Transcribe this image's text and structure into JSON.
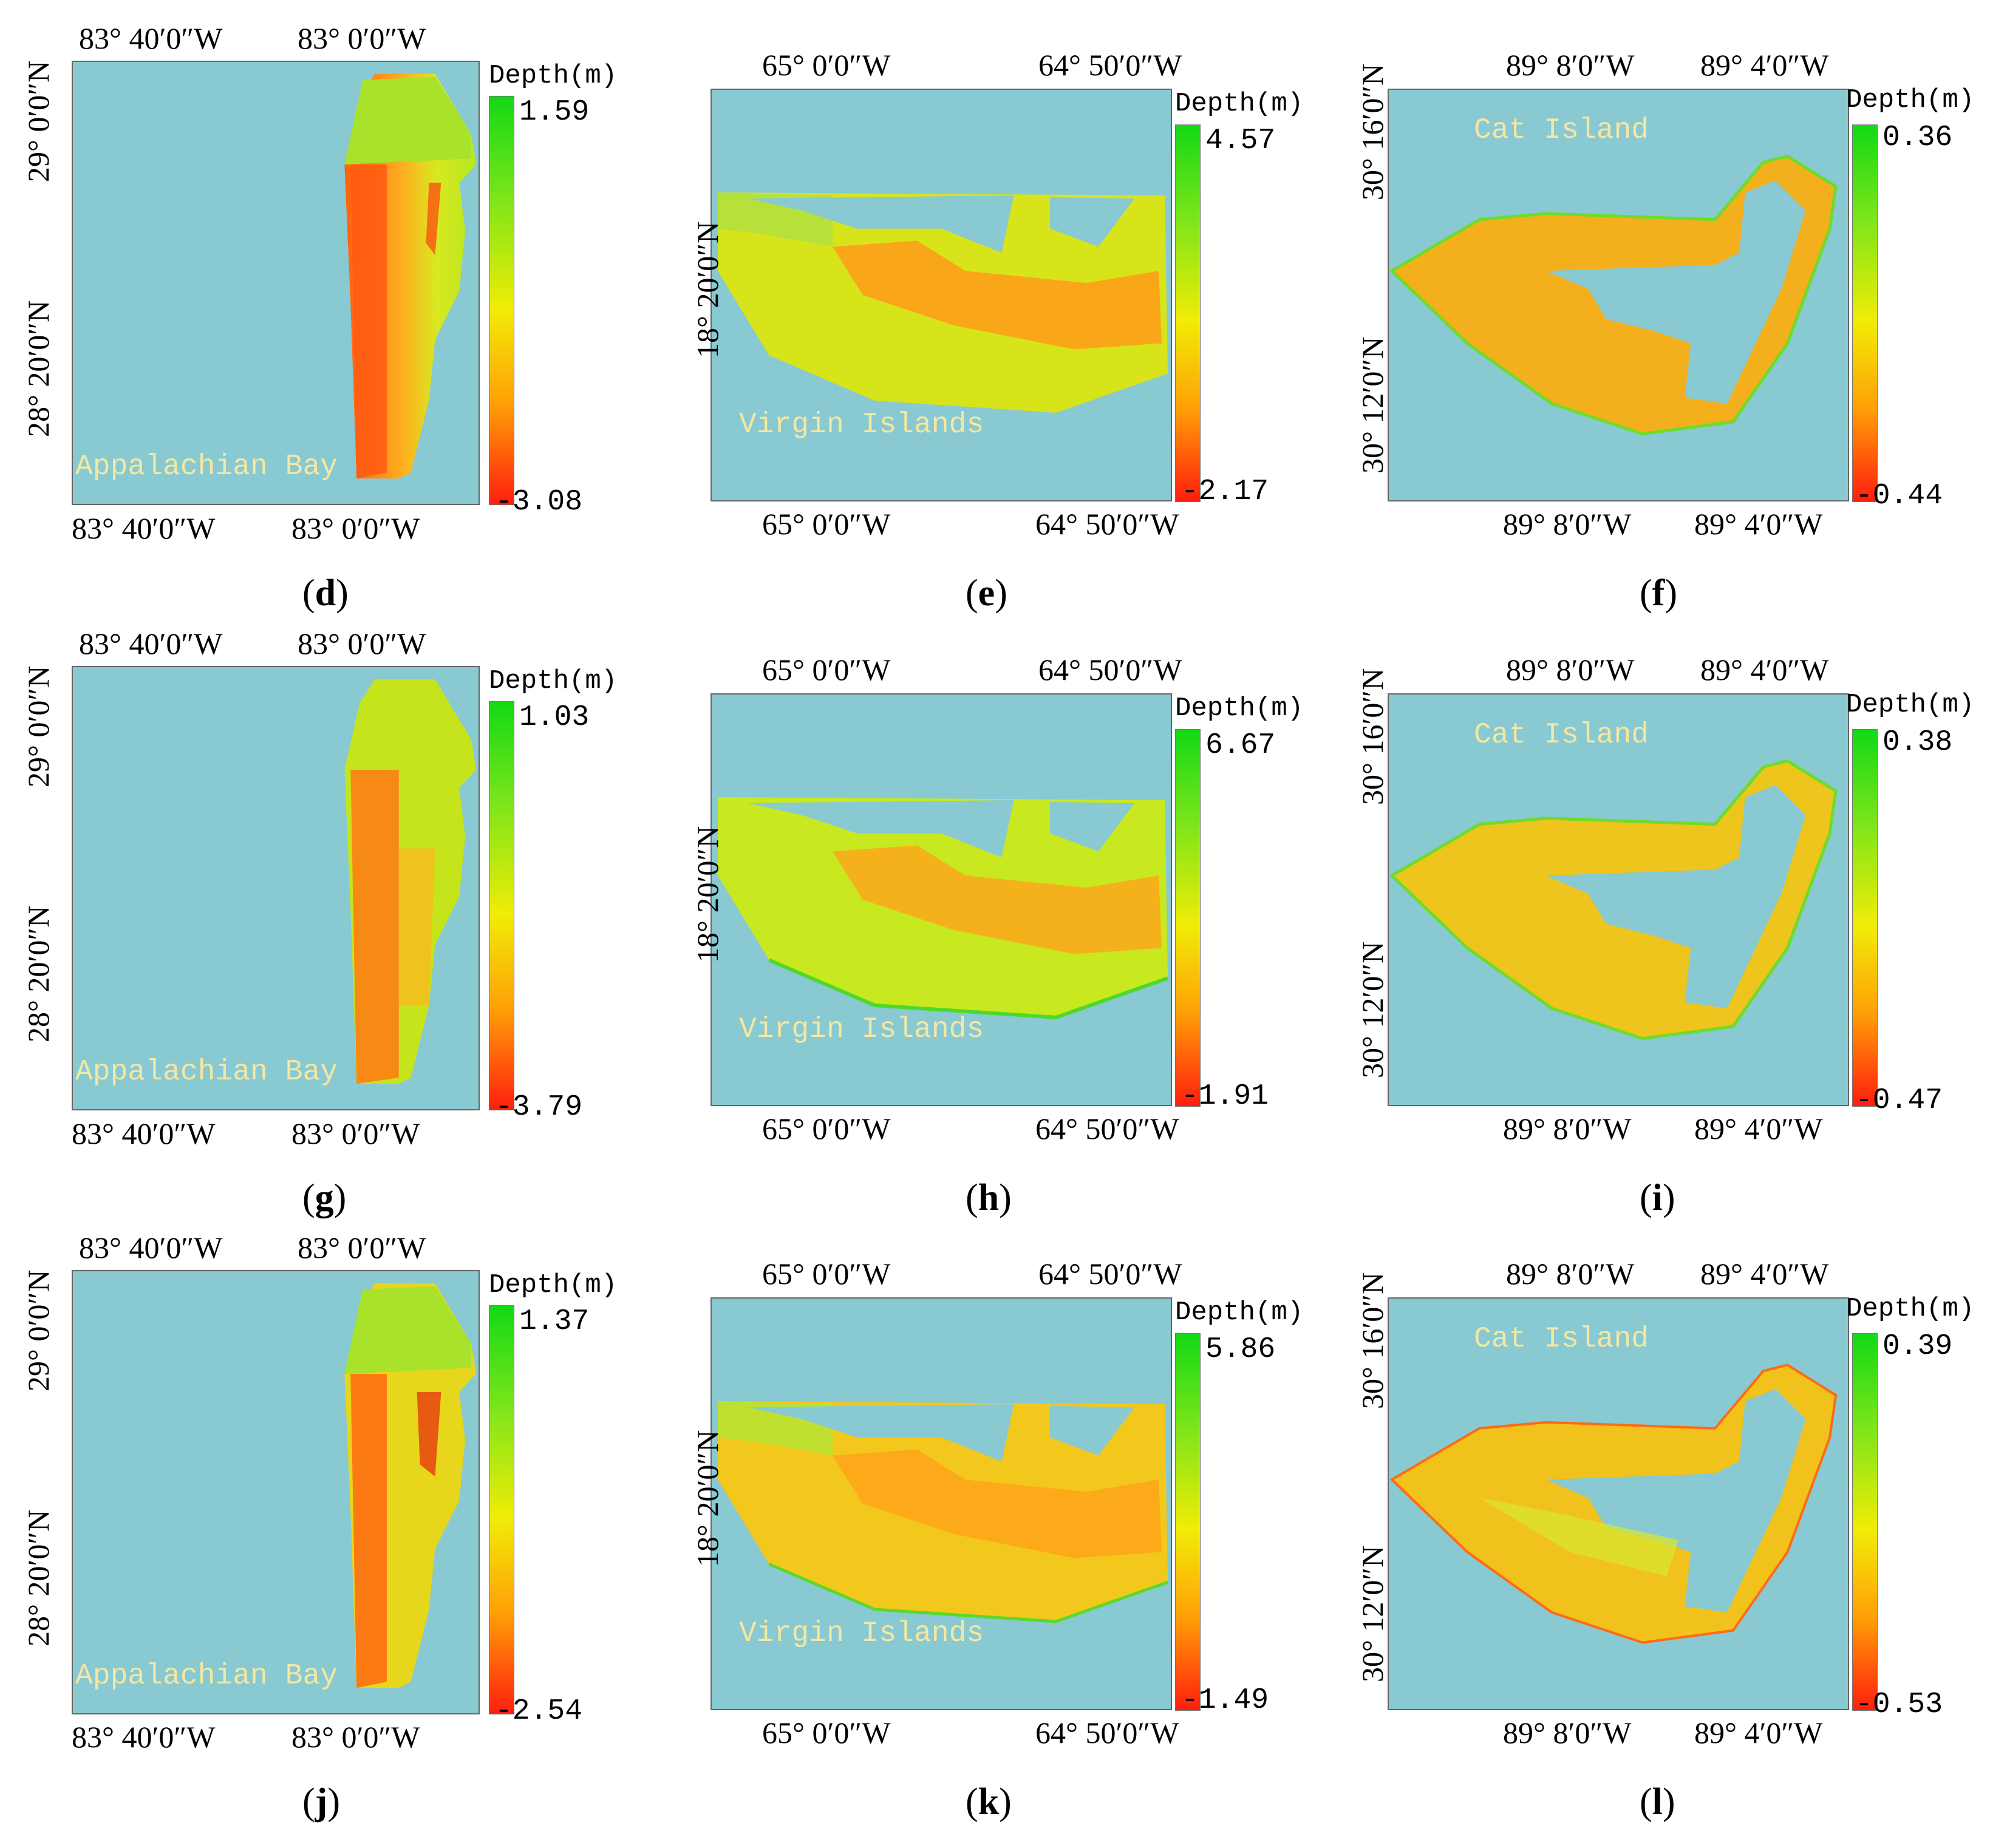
{
  "panels": [
    {
      "id": "d",
      "caption_letter": "d",
      "region": "Appalachian Bay",
      "legend_title": "Depth(m)",
      "legend_max": "1.59",
      "legend_min": "-3.08",
      "top_ticks": [
        "83° 40′0″W",
        "83° 0′0″W"
      ],
      "bottom_ticks": [
        "83° 40′0″W",
        "83° 0′0″W"
      ],
      "left_ticks": [
        "29° 0′0″N",
        "28° 20′0″N"
      ]
    },
    {
      "id": "e",
      "caption_letter": "e",
      "region": "Virgin Islands",
      "legend_title": "Depth(m)",
      "legend_max": "4.57",
      "legend_min": "-2.17",
      "top_ticks": [
        "65° 0′0″W",
        "64° 50′0″W"
      ],
      "bottom_ticks": [
        "65° 0′0″W",
        "64° 50′0″W"
      ],
      "left_ticks": [
        "18° 20′0″N"
      ]
    },
    {
      "id": "f",
      "caption_letter": "f",
      "region": "Cat Island",
      "legend_title": "Depth(m)",
      "legend_max": "0.36",
      "legend_min": "-0.44",
      "top_ticks": [
        "89° 8′0″W",
        "89° 4′0″W"
      ],
      "bottom_ticks": [
        "89° 8′0″W",
        "89° 4′0″W"
      ],
      "left_ticks": [
        "30° 16′0″N",
        "30° 12′0″N"
      ]
    },
    {
      "id": "g",
      "caption_letter": "g",
      "region": "Appalachian Bay",
      "legend_title": "Depth(m)",
      "legend_max": "1.03",
      "legend_min": "-3.79",
      "top_ticks": [
        "83° 40′0″W",
        "83° 0′0″W"
      ],
      "bottom_ticks": [
        "83° 40′0″W",
        "83° 0′0″W"
      ],
      "left_ticks": [
        "29° 0′0″N",
        "28° 20′0″N"
      ]
    },
    {
      "id": "h",
      "caption_letter": "h",
      "region": "Virgin Islands",
      "legend_title": "Depth(m)",
      "legend_max": "6.67",
      "legend_min": "-1.91",
      "top_ticks": [
        "65° 0′0″W",
        "64° 50′0″W"
      ],
      "bottom_ticks": [
        "65° 0′0″W",
        "64° 50′0″W"
      ],
      "left_ticks": [
        "18° 20′0″N"
      ]
    },
    {
      "id": "i",
      "caption_letter": "i",
      "region": "Cat Island",
      "legend_title": "Depth(m)",
      "legend_max": "0.38",
      "legend_min": "-0.47",
      "top_ticks": [
        "89° 8′0″W",
        "89° 4′0″W"
      ],
      "bottom_ticks": [
        "89° 8′0″W",
        "89° 4′0″W"
      ],
      "left_ticks": [
        "30° 16′0″N",
        "30° 12′0″N"
      ]
    },
    {
      "id": "j",
      "caption_letter": "j",
      "region": "Appalachian Bay",
      "legend_title": "Depth(m)",
      "legend_max": "1.37",
      "legend_min": "-2.54",
      "top_ticks": [
        "83° 40′0″W",
        "83° 0′0″W"
      ],
      "bottom_ticks": [
        "83° 40′0″W",
        "83° 0′0″W"
      ],
      "left_ticks": [
        "29° 0′0″N",
        "28° 20′0″N"
      ]
    },
    {
      "id": "k",
      "caption_letter": "k",
      "region": "Virgin Islands",
      "legend_title": "Depth(m)",
      "legend_max": "5.86",
      "legend_min": "-1.49",
      "top_ticks": [
        "65° 0′0″W",
        "64° 50′0″W"
      ],
      "bottom_ticks": [
        "65° 0′0″W",
        "64° 50′0″W"
      ],
      "left_ticks": [
        "18° 20′0″N"
      ]
    },
    {
      "id": "l",
      "caption_letter": "l",
      "region": "Cat Island",
      "legend_title": "Depth(m)",
      "legend_max": "0.39",
      "legend_min": "-0.53",
      "top_ticks": [
        "89° 8′0″W",
        "89° 4′0″W"
      ],
      "bottom_ticks": [
        "89° 8′0″W",
        "89° 4′0″W"
      ],
      "left_ticks": [
        "30° 16′0″N",
        "30° 12′0″N"
      ]
    }
  ],
  "colors": {
    "water": "#88c9d2",
    "depth_high": "#12d915",
    "depth_mid": "#f1ec07",
    "depth_low": "#ff1e0e",
    "label": "#f4e7a2"
  }
}
